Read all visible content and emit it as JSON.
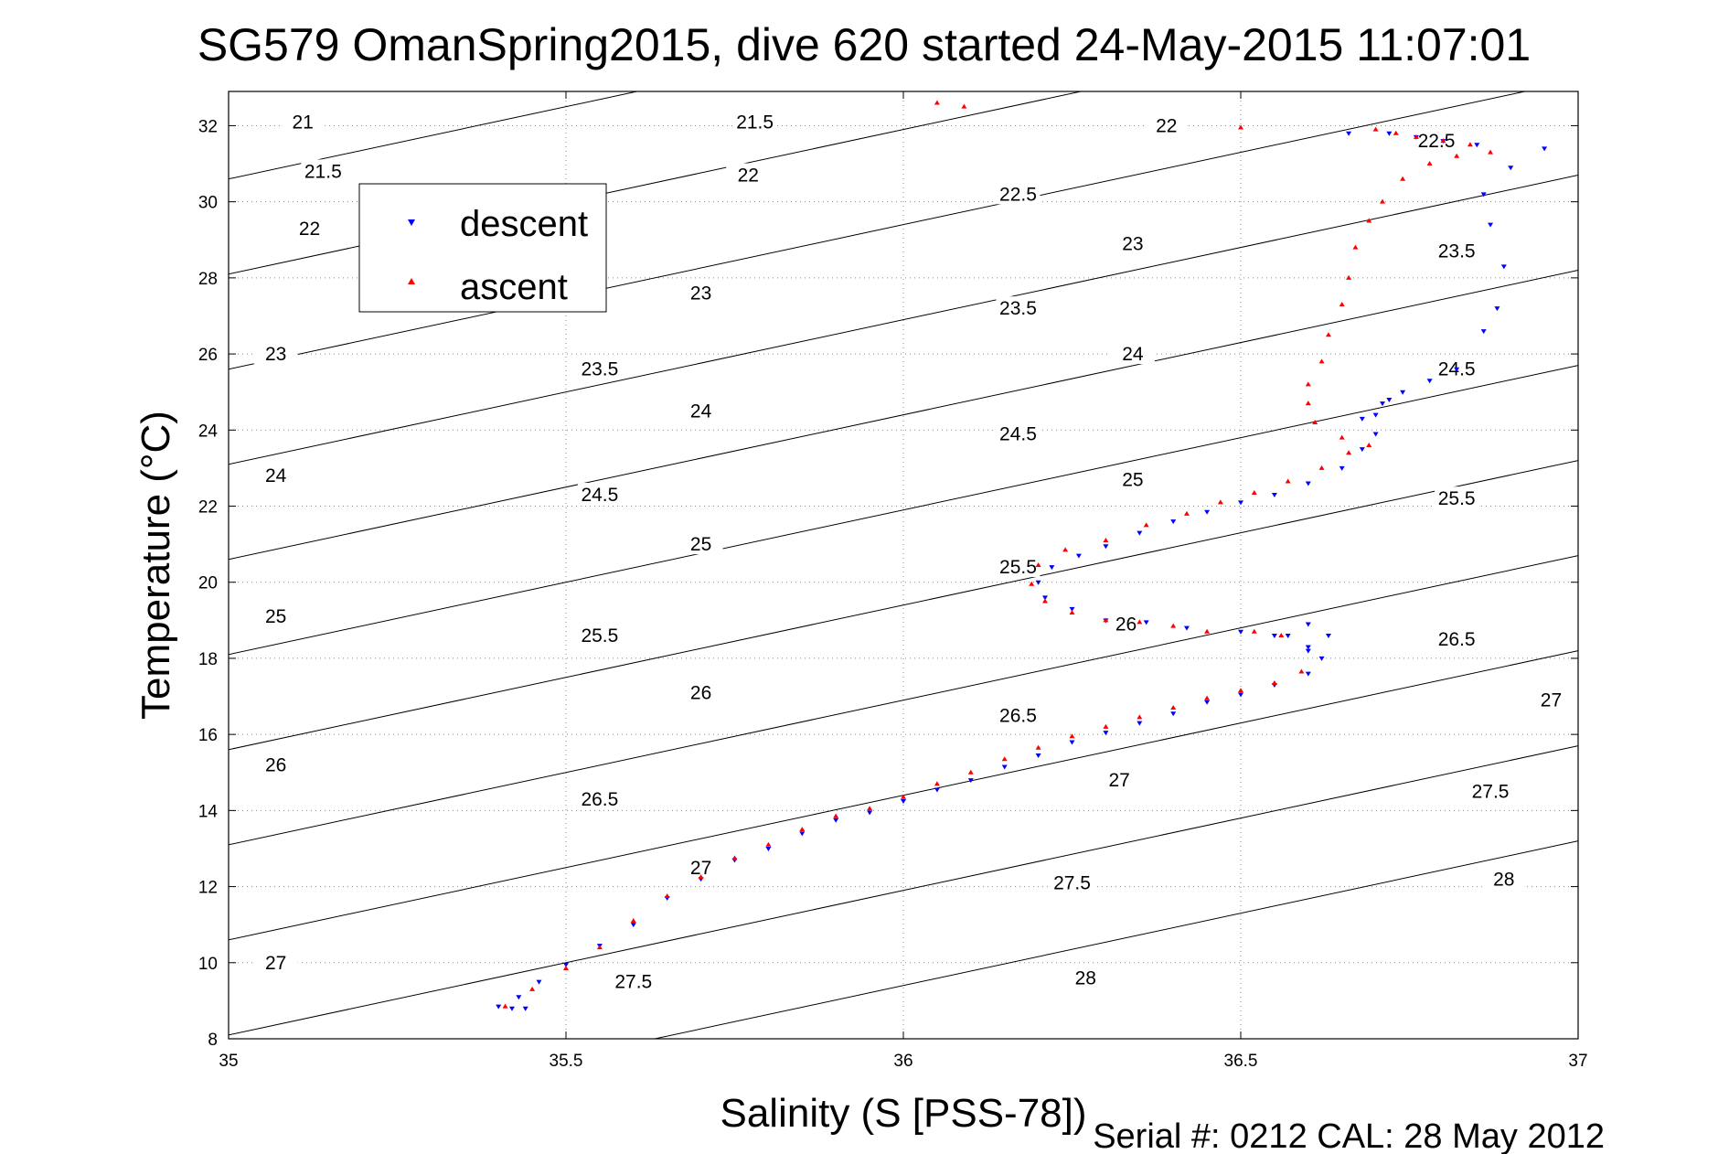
{
  "chart_data": {
    "type": "scatter",
    "title": "SG579 OmanSpring2015, dive 620 started 24-May-2015 11:07:01",
    "xlabel": "Salinity (S [PSS-78])",
    "ylabel": "Temperature (°C)",
    "footnote": "Serial #: 0212  CAL: 28 May 2012",
    "xlim": [
      35,
      37
    ],
    "ylim": [
      8,
      32.9
    ],
    "x_ticks": [
      35,
      35.5,
      36,
      36.5,
      37
    ],
    "x_tick_labels": [
      "35",
      "35.5",
      "36",
      "36.5",
      "37"
    ],
    "y_ticks": [
      8,
      10,
      12,
      14,
      16,
      18,
      20,
      22,
      24,
      26,
      28,
      30,
      32
    ],
    "y_tick_labels": [
      "8",
      "10",
      "12",
      "14",
      "16",
      "18",
      "20",
      "22",
      "24",
      "26",
      "28",
      "30",
      "32"
    ],
    "grid": true,
    "legend_position": "top-left",
    "contour_levels": [
      21,
      21.5,
      22,
      22.5,
      23,
      23.5,
      24,
      24.5,
      25,
      25.5,
      26,
      26.5,
      27,
      27.5,
      28
    ],
    "contour_labels": [
      {
        "text": "21",
        "x": 35.11,
        "y": 32.1
      },
      {
        "text": "21.5",
        "x": 35.14,
        "y": 30.8
      },
      {
        "text": "22",
        "x": 35.12,
        "y": 29.3
      },
      {
        "text": "21.5",
        "x": 35.78,
        "y": 32.1
      },
      {
        "text": "22",
        "x": 35.77,
        "y": 30.7
      },
      {
        "text": "22",
        "x": 36.39,
        "y": 32.0
      },
      {
        "text": "23",
        "x": 35.07,
        "y": 26.0
      },
      {
        "text": "23",
        "x": 35.7,
        "y": 27.6
      },
      {
        "text": "22.5",
        "x": 36.17,
        "y": 30.2
      },
      {
        "text": "23",
        "x": 36.34,
        "y": 28.9
      },
      {
        "text": "22.5",
        "x": 36.79,
        "y": 31.6
      },
      {
        "text": "24",
        "x": 35.07,
        "y": 22.8
      },
      {
        "text": "23.5",
        "x": 35.55,
        "y": 25.6
      },
      {
        "text": "24",
        "x": 35.7,
        "y": 24.5
      },
      {
        "text": "23.5",
        "x": 36.17,
        "y": 27.2
      },
      {
        "text": "24",
        "x": 36.34,
        "y": 26.0
      },
      {
        "text": "23.5",
        "x": 36.82,
        "y": 28.7
      },
      {
        "text": "24.5",
        "x": 36.82,
        "y": 25.6
      },
      {
        "text": "25",
        "x": 35.07,
        "y": 19.1
      },
      {
        "text": "24.5",
        "x": 35.55,
        "y": 22.3
      },
      {
        "text": "25",
        "x": 35.7,
        "y": 21.0
      },
      {
        "text": "24.5",
        "x": 36.17,
        "y": 23.9
      },
      {
        "text": "25",
        "x": 36.34,
        "y": 22.7
      },
      {
        "text": "25.5",
        "x": 36.82,
        "y": 22.2
      },
      {
        "text": "26",
        "x": 35.07,
        "y": 15.2
      },
      {
        "text": "25.5",
        "x": 35.55,
        "y": 18.6
      },
      {
        "text": "26",
        "x": 35.7,
        "y": 17.1
      },
      {
        "text": "25.5",
        "x": 36.17,
        "y": 20.4
      },
      {
        "text": "26",
        "x": 36.33,
        "y": 18.9
      },
      {
        "text": "26.5",
        "x": 36.82,
        "y": 18.5
      },
      {
        "text": "27",
        "x": 35.07,
        "y": 10.0
      },
      {
        "text": "26.5",
        "x": 35.55,
        "y": 14.3
      },
      {
        "text": "27",
        "x": 35.7,
        "y": 12.5
      },
      {
        "text": "26.5",
        "x": 36.17,
        "y": 16.5
      },
      {
        "text": "27",
        "x": 36.32,
        "y": 14.8
      },
      {
        "text": "27",
        "x": 36.96,
        "y": 16.9
      },
      {
        "text": "27.5",
        "x": 35.6,
        "y": 9.5
      },
      {
        "text": "27.5",
        "x": 36.25,
        "y": 12.1
      },
      {
        "text": "27.5",
        "x": 36.87,
        "y": 14.5
      },
      {
        "text": "28",
        "x": 36.27,
        "y": 9.6
      },
      {
        "text": "28",
        "x": 36.89,
        "y": 12.2
      }
    ],
    "series": [
      {
        "name": "descent",
        "color": "#0000ff",
        "marker": "triangle-down",
        "x": [
          35.44,
          35.42,
          35.4,
          35.43,
          35.46,
          35.5,
          35.55,
          35.6,
          35.65,
          35.7,
          35.75,
          35.8,
          35.85,
          35.9,
          35.95,
          36.0,
          36.05,
          36.1,
          36.15,
          36.2,
          36.25,
          36.3,
          36.35,
          36.4,
          36.45,
          36.5,
          36.55,
          36.6,
          36.62,
          36.6,
          36.57,
          36.6,
          36.63,
          36.6,
          36.55,
          36.5,
          36.42,
          36.36,
          36.3,
          36.25,
          36.21,
          36.2,
          36.22,
          36.26,
          36.3,
          36.35,
          36.4,
          36.45,
          36.5,
          36.55,
          36.6,
          36.65,
          36.68,
          36.7,
          36.68,
          36.71,
          36.7,
          36.72,
          36.74,
          36.78,
          36.82,
          36.86,
          36.88,
          36.89,
          36.87,
          36.86,
          36.9,
          36.95,
          36.85,
          36.8,
          36.76,
          36.72,
          36.66
        ],
        "y": [
          8.8,
          8.8,
          8.85,
          9.1,
          9.5,
          9.95,
          10.45,
          11.0,
          11.7,
          12.2,
          12.7,
          13.0,
          13.4,
          13.75,
          13.95,
          14.25,
          14.55,
          14.8,
          15.15,
          15.45,
          15.8,
          16.05,
          16.3,
          16.55,
          16.85,
          17.05,
          17.3,
          17.6,
          18.0,
          18.3,
          18.6,
          18.9,
          18.6,
          18.2,
          18.6,
          18.7,
          18.8,
          18.95,
          19.0,
          19.3,
          19.6,
          20.0,
          20.4,
          20.7,
          20.95,
          21.3,
          21.6,
          21.85,
          22.1,
          22.3,
          22.6,
          23.0,
          23.5,
          23.9,
          24.3,
          24.7,
          24.4,
          24.8,
          25.0,
          25.3,
          25.6,
          26.6,
          27.2,
          28.3,
          29.4,
          30.2,
          30.9,
          31.4,
          31.5,
          31.6,
          31.7,
          31.8,
          31.8
        ]
      },
      {
        "name": "ascent",
        "color": "#ff0000",
        "marker": "triangle-up",
        "x": [
          35.41,
          35.45,
          35.5,
          35.55,
          35.6,
          35.65,
          35.7,
          35.75,
          35.8,
          35.85,
          35.9,
          35.95,
          36.0,
          36.05,
          36.1,
          36.15,
          36.2,
          36.25,
          36.3,
          36.35,
          36.4,
          36.45,
          36.5,
          36.55,
          36.59,
          36.56,
          36.52,
          36.45,
          36.4,
          36.35,
          36.3,
          36.25,
          36.21,
          36.19,
          36.2,
          36.24,
          36.3,
          36.36,
          36.42,
          36.47,
          36.52,
          36.57,
          36.62,
          36.66,
          36.69,
          36.65,
          36.61,
          36.6,
          36.6,
          36.62,
          36.63,
          36.65,
          36.66,
          36.67,
          36.69,
          36.71,
          36.74,
          36.78,
          36.82,
          36.87,
          36.84,
          36.8,
          36.76,
          36.73,
          36.7,
          36.05,
          36.09,
          36.5
        ],
        "y": [
          8.85,
          9.3,
          9.85,
          10.4,
          11.1,
          11.75,
          12.25,
          12.75,
          13.1,
          13.5,
          13.85,
          14.05,
          14.35,
          14.7,
          15.0,
          15.35,
          15.65,
          15.95,
          16.2,
          16.45,
          16.7,
          16.95,
          17.15,
          17.35,
          17.65,
          18.6,
          18.7,
          18.7,
          18.85,
          18.95,
          19.0,
          19.2,
          19.5,
          19.95,
          20.45,
          20.85,
          21.1,
          21.5,
          21.8,
          22.1,
          22.35,
          22.65,
          23.0,
          23.4,
          23.6,
          23.8,
          24.2,
          24.7,
          25.2,
          25.8,
          26.5,
          27.3,
          28.0,
          28.8,
          29.5,
          30.0,
          30.6,
          31.0,
          31.2,
          31.3,
          31.5,
          31.6,
          31.7,
          31.8,
          31.9,
          32.6,
          32.5,
          31.95
        ]
      }
    ]
  }
}
